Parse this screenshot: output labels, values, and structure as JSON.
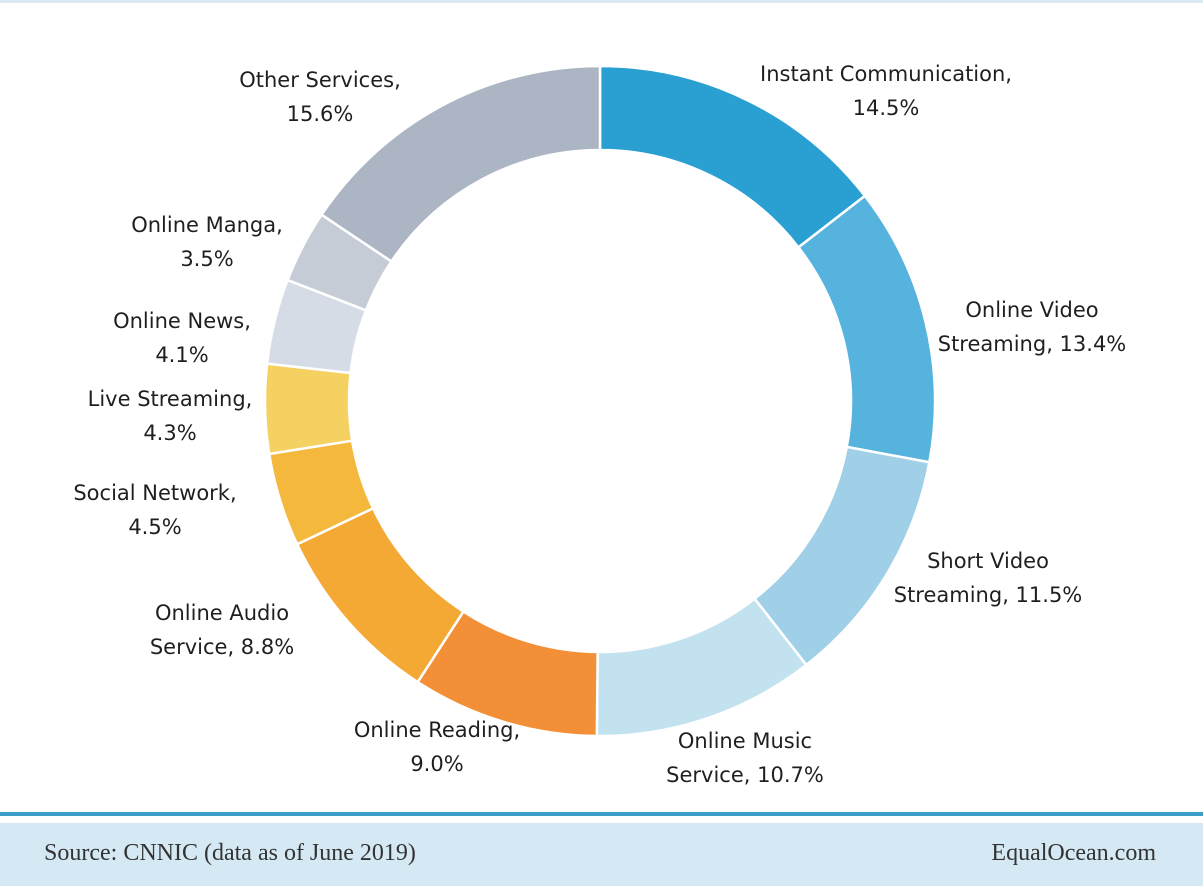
{
  "chart_data": {
    "type": "pie",
    "variant": "donut",
    "categories": [
      "Instant Communication",
      "Online Video Streaming",
      "Short Video Streaming",
      "Online Music Service",
      "Online Reading",
      "Online Audio Service",
      "Social Network",
      "Live Streaming",
      "Online News",
      "Online Manga",
      "Other Services"
    ],
    "values": [
      14.5,
      13.4,
      11.5,
      10.7,
      9.0,
      8.8,
      4.5,
      4.3,
      4.1,
      3.5,
      15.6
    ],
    "colors": [
      "#2aa0d2",
      "#55b3dd",
      "#9fd0e7",
      "#c3e2ef",
      "#f38f36",
      "#f4a935",
      "#f4b83c",
      "#f5d161",
      "#d5dce5",
      "#c6ccd6",
      "#acb5c3"
    ],
    "labels": [
      [
        "Instant Communication,",
        "14.5%"
      ],
      [
        "Online Video",
        "Streaming, 13.4%"
      ],
      [
        "Short Video",
        "Streaming, 11.5%"
      ],
      [
        "Online Music",
        "Service, 10.7%"
      ],
      [
        "Online Reading,",
        "9.0%"
      ],
      [
        "Online Audio",
        "Service, 8.8%"
      ],
      [
        "Social Network,",
        "4.5%"
      ],
      [
        "Live Streaming,",
        "4.3%"
      ],
      [
        "Online News,",
        "4.1%"
      ],
      [
        "Online Manga,",
        "3.5%"
      ],
      [
        "Other Services,",
        "15.6%"
      ]
    ],
    "start": "12 o'clock",
    "direction": "clockwise",
    "legend": "none"
  },
  "footer": {
    "source": "Source: CNNIC (data as of June 2019)",
    "brand": "EqualOcean.com"
  }
}
